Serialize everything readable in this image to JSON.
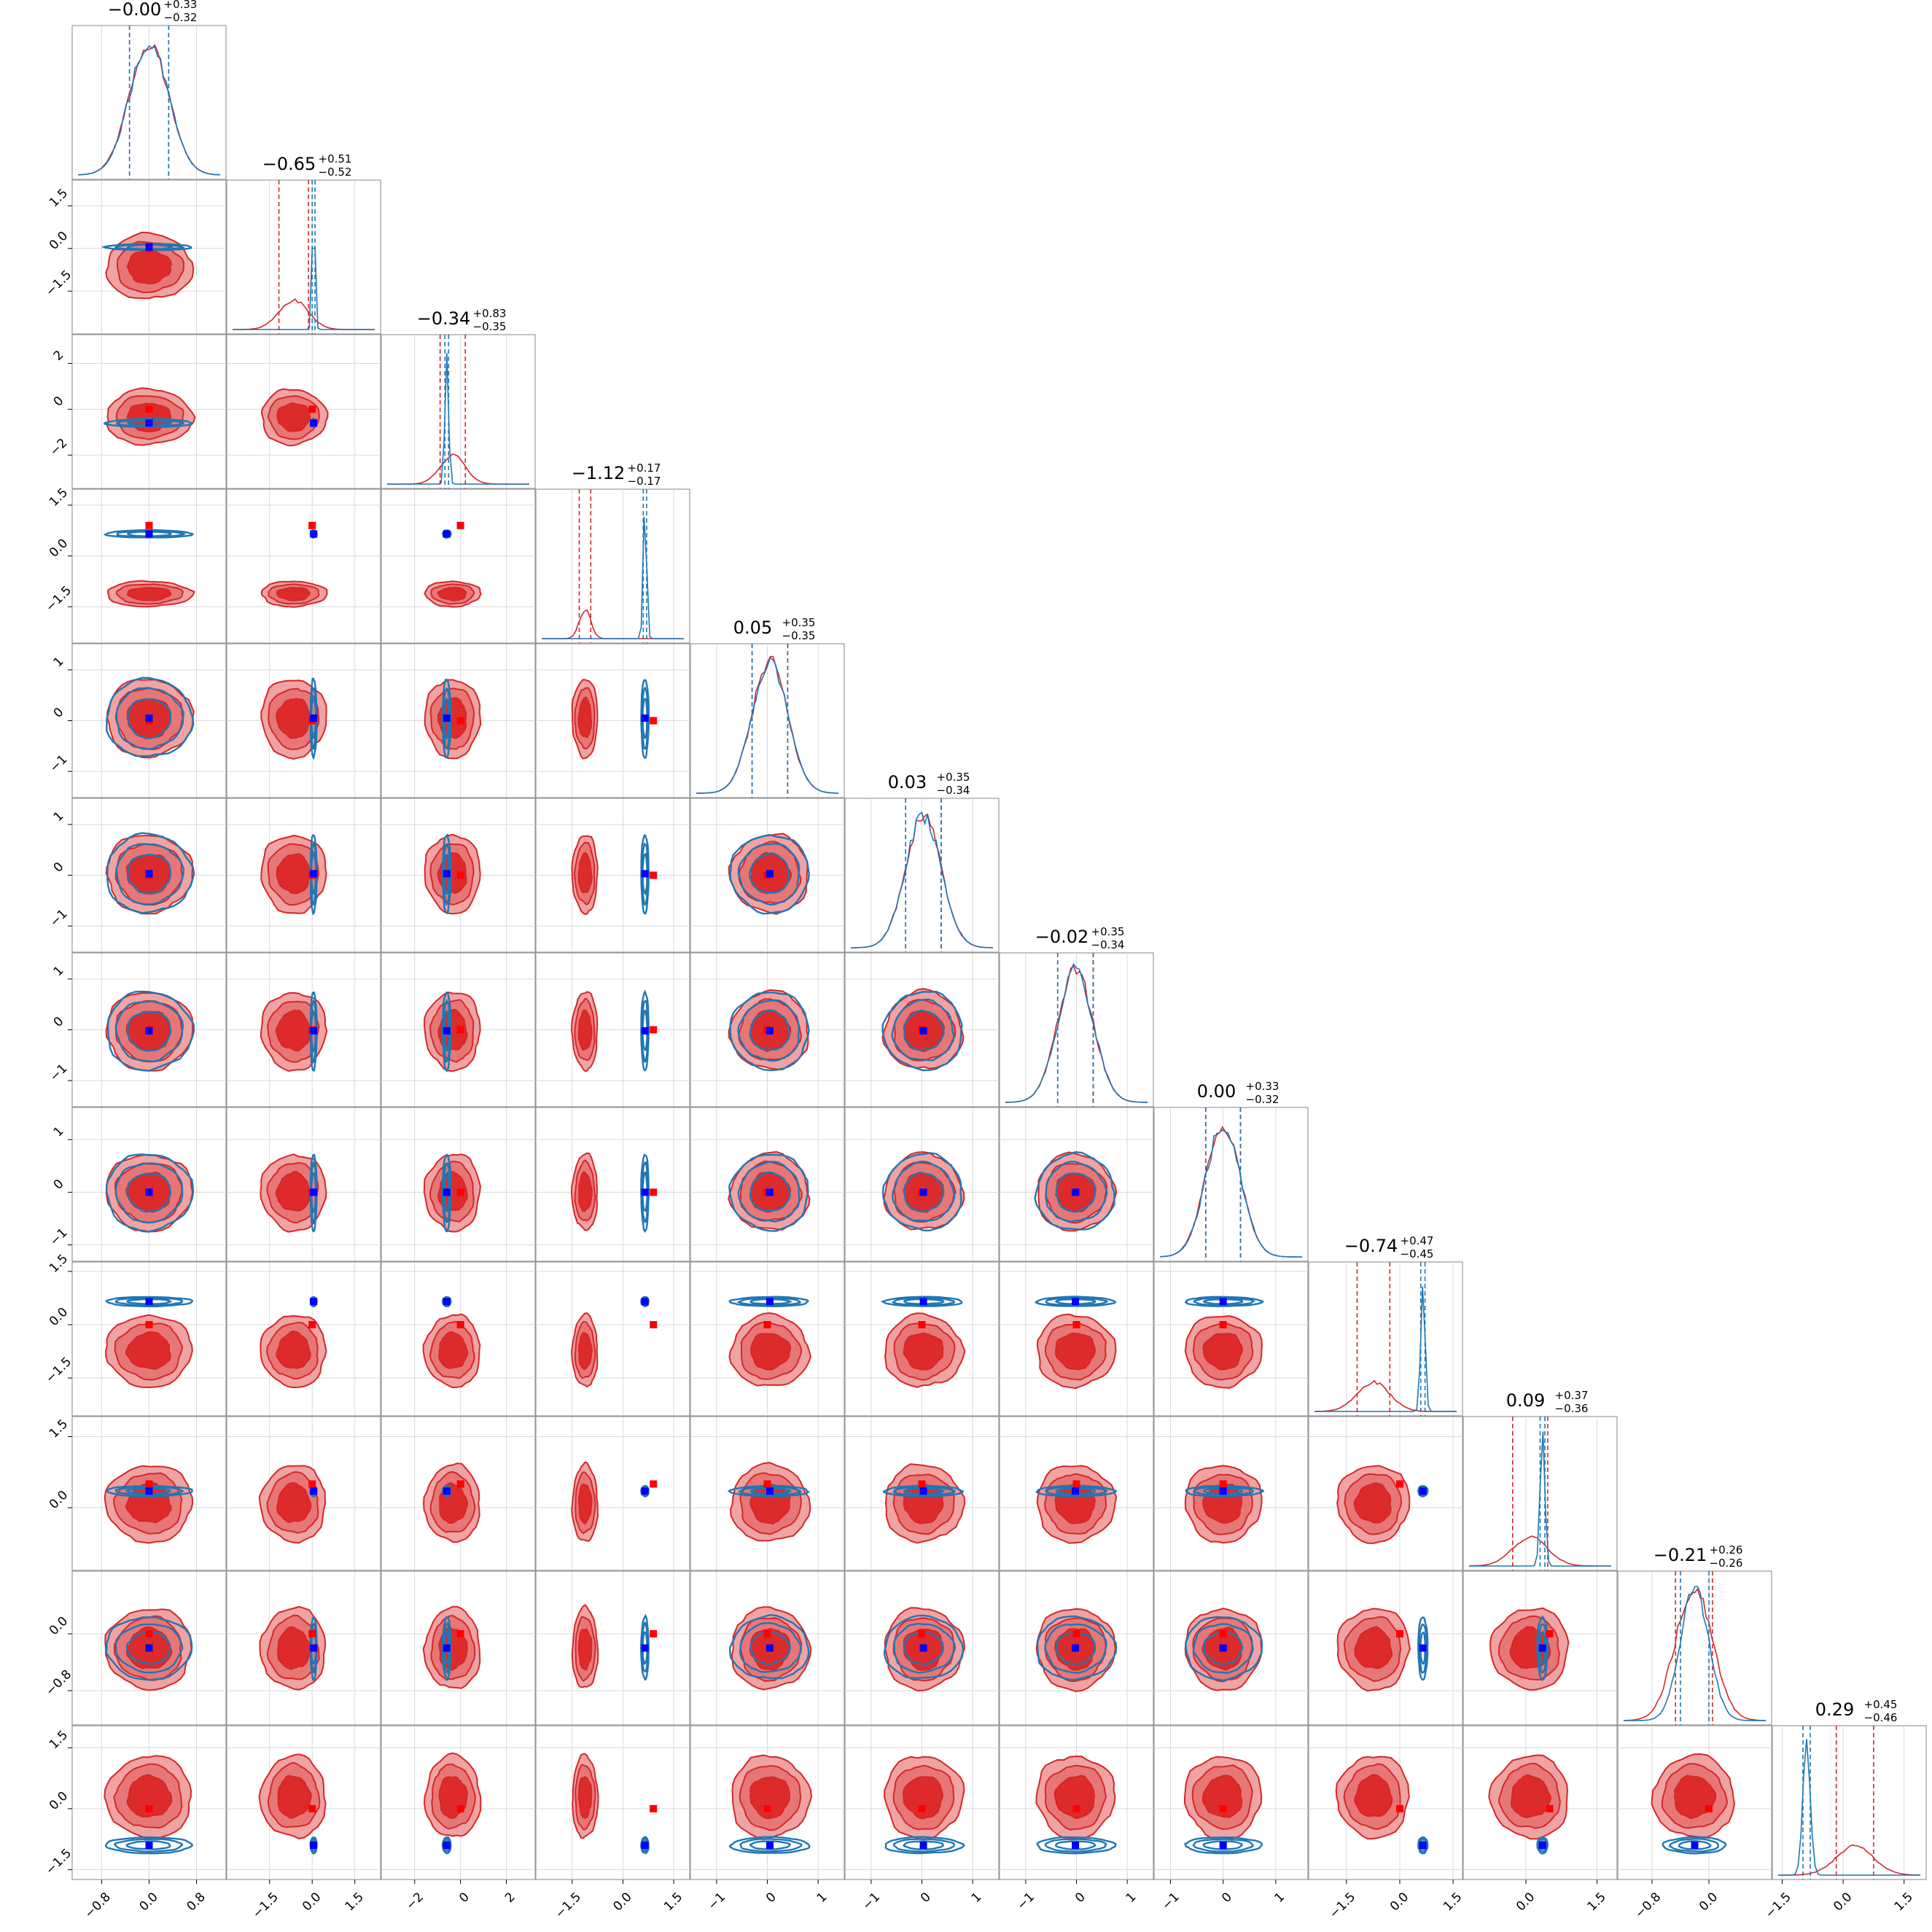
{
  "chart_data": {
    "type": "corner",
    "n_params": 12,
    "titles": [
      {
        "median": "−0.00",
        "plus": "+0.33",
        "minus": "−0.32"
      },
      {
        "median": "−0.65",
        "plus": "+0.51",
        "minus": "−0.52"
      },
      {
        "median": "−0.34",
        "plus": "+0.83",
        "minus": "−0.35"
      },
      {
        "median": "−1.12",
        "plus": "+0.17",
        "minus": "−0.17"
      },
      {
        "median": "0.05",
        "plus": "+0.35",
        "minus": "−0.35"
      },
      {
        "median": "0.03",
        "plus": "+0.35",
        "minus": "−0.34"
      },
      {
        "median": "−0.02",
        "plus": "+0.35",
        "minus": "−0.34"
      },
      {
        "median": "0.00",
        "plus": "+0.33",
        "minus": "−0.32"
      },
      {
        "median": "−0.74",
        "plus": "+0.47",
        "minus": "−0.45"
      },
      {
        "median": "0.09",
        "plus": "+0.37",
        "minus": "−0.36"
      },
      {
        "median": "−0.21",
        "plus": "+0.26",
        "minus": "−0.26"
      },
      {
        "median": "0.29",
        "plus": "+0.45",
        "minus": "−0.46"
      }
    ],
    "ranges": [
      [
        -1.2,
        1.2
      ],
      [
        -2.8,
        2.2
      ],
      [
        -3.2,
        3.0
      ],
      [
        -2.4,
        1.8
      ],
      [
        -1.4,
        1.4
      ],
      [
        -1.4,
        1.4
      ],
      [
        -1.4,
        1.4
      ],
      [
        -1.2,
        1.5
      ],
      [
        -2.4,
        1.6
      ],
      [
        -1.2,
        1.8
      ],
      [
        -1.2,
        0.8
      ],
      [
        -1.6,
        1.9
      ]
    ],
    "ticks": [
      [
        -0.8,
        0.0,
        0.8
      ],
      [
        -1.5,
        0.0,
        1.5
      ],
      [
        -2,
        0,
        2
      ],
      [
        -1.5,
        0.0,
        1.5
      ],
      [
        -1,
        0,
        1
      ],
      [
        -1,
        0,
        1
      ],
      [
        -1,
        0,
        1
      ],
      [
        -1,
        0,
        1
      ],
      [
        -1.5,
        0.0,
        1.5
      ],
      [
        0.0,
        1.5
      ],
      [
        -0.8,
        0.0
      ],
      [
        -1.5,
        0.0,
        1.5
      ]
    ],
    "tick_labels": [
      [
        "−0.8",
        "0.0",
        "0.8"
      ],
      [
        "−1.5",
        "0.0",
        "1.5"
      ],
      [
        "−2",
        "0",
        "2"
      ],
      [
        "−1.5",
        "0.0",
        "1.5"
      ],
      [
        "−1",
        "0",
        "1"
      ],
      [
        "−1",
        "0",
        "1"
      ],
      [
        "−1",
        "0",
        "1"
      ],
      [
        "−1",
        "0",
        "1"
      ],
      [
        "−1.5",
        "0.0",
        "1.5"
      ],
      [
        "0.0",
        "1.5"
      ],
      [
        "−0.8",
        "0.0"
      ],
      [
        "−1.5",
        "0.0",
        "1.5"
      ]
    ],
    "series": [
      {
        "color": "#d62728",
        "mean": [
          0.0,
          -0.65,
          -0.34,
          -1.12,
          0.05,
          0.03,
          -0.02,
          0.0,
          -0.74,
          0.09,
          -0.21,
          0.29
        ],
        "sd": [
          0.33,
          0.52,
          0.55,
          0.17,
          0.35,
          0.35,
          0.35,
          0.33,
          0.46,
          0.37,
          0.26,
          0.46
        ]
      },
      {
        "color": "#1f77b4",
        "mean": [
          0.0,
          0.05,
          -0.6,
          0.65,
          0.05,
          0.03,
          -0.02,
          0.0,
          0.65,
          0.35,
          -0.2,
          -0.9
        ],
        "sd": [
          0.33,
          0.05,
          0.08,
          0.05,
          0.35,
          0.35,
          0.35,
          0.33,
          0.06,
          0.05,
          0.2,
          0.09
        ]
      }
    ],
    "truth_points": {
      "red": [
        0.0,
        0.0,
        0.0,
        0.9,
        0.0,
        0.0,
        0.0,
        0.0,
        0.0,
        0.5,
        0.0,
        0.0
      ],
      "blue": [
        0.0,
        0.05,
        -0.6,
        0.65,
        0.05,
        0.03,
        -0.02,
        0.0,
        0.65,
        0.35,
        -0.2,
        -0.9
      ]
    },
    "grid": true
  }
}
